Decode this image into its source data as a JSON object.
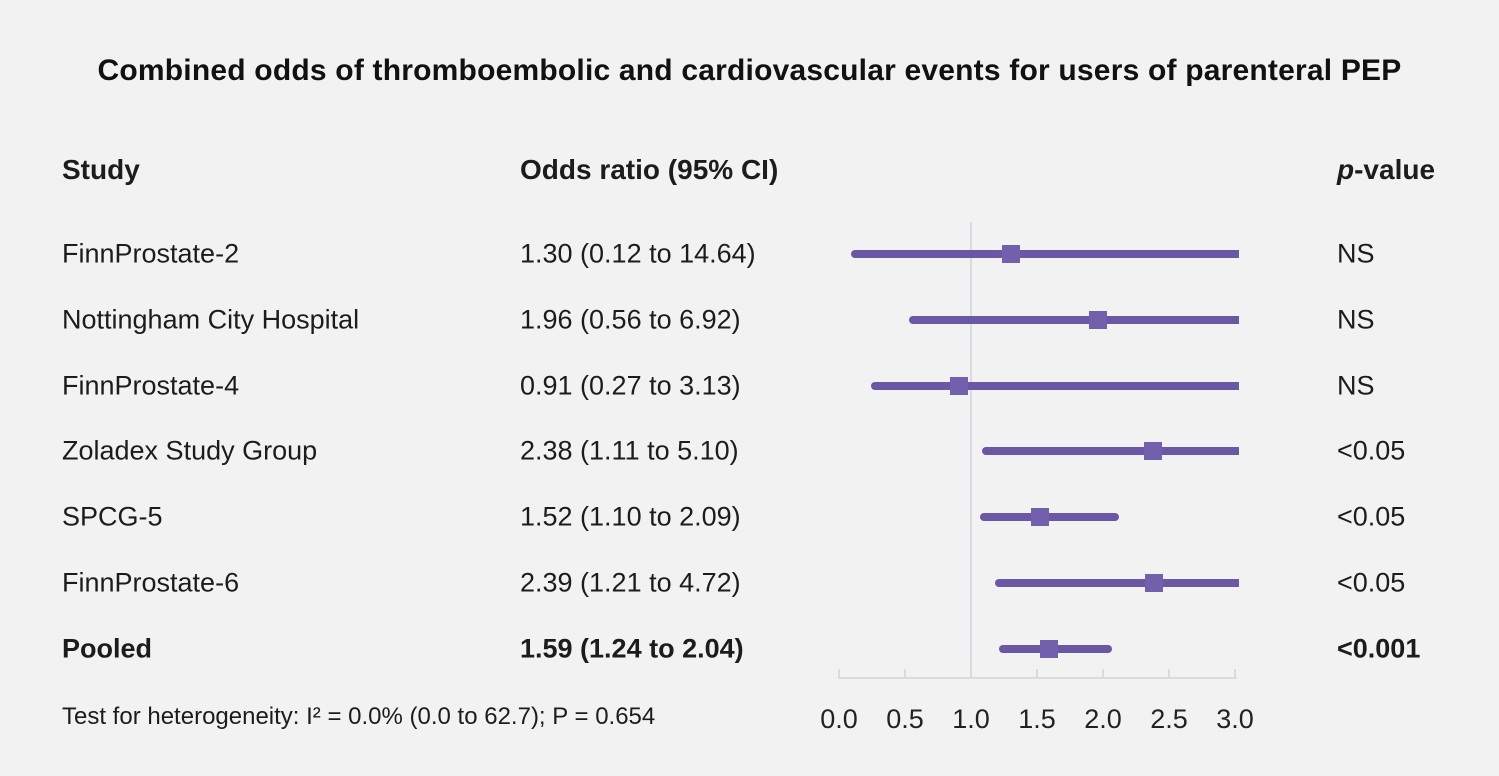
{
  "title": "Combined odds of thromboembolic and cardiovascular events for users of parenteral PEP",
  "columns": {
    "study": "Study",
    "odds_ratio": "Odds ratio (95% CI)",
    "p_italic": "p",
    "p_rest": "-value"
  },
  "footnote": "Test for heterogeneity: I² = 0.0% (0.0 to 62.7); P = 0.654",
  "colors": {
    "background": "#f2f2f2",
    "ci_line": "#6a58a5",
    "marker": "#7360ac",
    "axis": "#d8dce1",
    "text": "#1c1c1c"
  },
  "chart_data": {
    "type": "forest",
    "title": "Combined odds of thromboembolic and cardiovascular events for users of parenteral PEP",
    "xlim": [
      0.0,
      3.0
    ],
    "reference_line": 1.0,
    "tick_labels": [
      "0.0",
      "0.5",
      "1.0",
      "1.5",
      "2.0",
      "2.5",
      "3.0"
    ],
    "rows": [
      {
        "study": "FinnProstate-2",
        "or_text": "1.30 (0.12 to 14.64)",
        "or": 1.3,
        "ci_low": 0.12,
        "ci_high": 14.64,
        "p": "NS",
        "bold": false
      },
      {
        "study": "Nottingham City Hospital",
        "or_text": "1.96 (0.56 to 6.92)",
        "or": 1.96,
        "ci_low": 0.56,
        "ci_high": 6.92,
        "p": "NS",
        "bold": false
      },
      {
        "study": "FinnProstate-4",
        "or_text": "0.91 (0.27 to 3.13)",
        "or": 0.91,
        "ci_low": 0.27,
        "ci_high": 3.13,
        "p": "NS",
        "bold": false
      },
      {
        "study": "Zoladex Study Group",
        "or_text": "2.38 (1.11 to 5.10)",
        "or": 2.38,
        "ci_low": 1.11,
        "ci_high": 5.1,
        "p": "<0.05",
        "bold": false
      },
      {
        "study": "SPCG-5",
        "or_text": "1.52 (1.10 to 2.09)",
        "or": 1.52,
        "ci_low": 1.1,
        "ci_high": 2.09,
        "p": "<0.05",
        "bold": false
      },
      {
        "study": "FinnProstate-6",
        "or_text": "2.39 (1.21 to 4.72)",
        "or": 2.39,
        "ci_low": 1.21,
        "ci_high": 4.72,
        "p": "<0.05",
        "bold": false
      },
      {
        "study": "Pooled",
        "or_text": "1.59 (1.24 to 2.04)",
        "or": 1.59,
        "ci_low": 1.24,
        "ci_high": 2.04,
        "p": "<0.001",
        "bold": true
      }
    ]
  }
}
